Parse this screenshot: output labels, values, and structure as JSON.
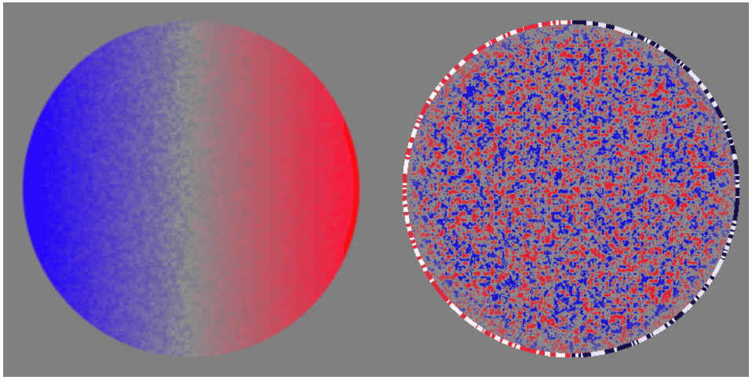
{
  "background_color": "#808080",
  "frame_color": "#ffffff",
  "panels": [
    {
      "name": "dopplergram",
      "description_colors": {
        "approaching": "#2a00ff",
        "receding": "#ff0010",
        "neutral": "#8a8a8a"
      }
    },
    {
      "name": "residual-velocity-map",
      "description_colors": {
        "negative": "#1a10d8",
        "positive": "#f01020",
        "neutral": "#8a8a8a",
        "limb-bright": "#ffffff",
        "limb-dark": "#101040"
      }
    }
  ]
}
